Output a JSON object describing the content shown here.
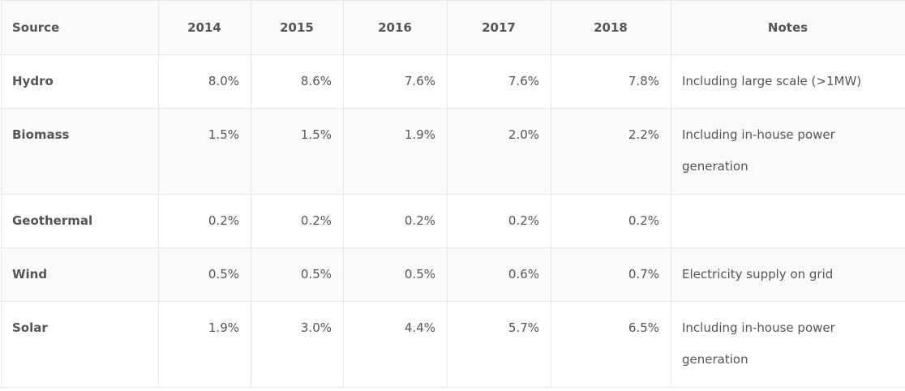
{
  "table": {
    "headers": [
      "Source",
      "2014",
      "2015",
      "2016",
      "2017",
      "2018",
      "Notes"
    ],
    "rows": [
      {
        "source": "Hydro",
        "values": [
          "8.0%",
          "8.6%",
          "7.6%",
          "7.6%",
          "7.8%"
        ],
        "note": "Including large scale (>1MW)"
      },
      {
        "source": "Biomass",
        "values": [
          "1.5%",
          "1.5%",
          "1.9%",
          "2.0%",
          "2.2%"
        ],
        "note": "Including in-house power generation"
      },
      {
        "source": "Geothermal",
        "values": [
          "0.2%",
          "0.2%",
          "0.2%",
          "0.2%",
          "0.2%"
        ],
        "note": ""
      },
      {
        "source": "Wind",
        "values": [
          "0.5%",
          "0.5%",
          "0.5%",
          "0.6%",
          "0.7%"
        ],
        "note": "Electricity supply on grid"
      },
      {
        "source": "Solar",
        "values": [
          "1.9%",
          "3.0%",
          "4.4%",
          "5.7%",
          "6.5%"
        ],
        "note": "Including in-house power generation"
      }
    ]
  }
}
